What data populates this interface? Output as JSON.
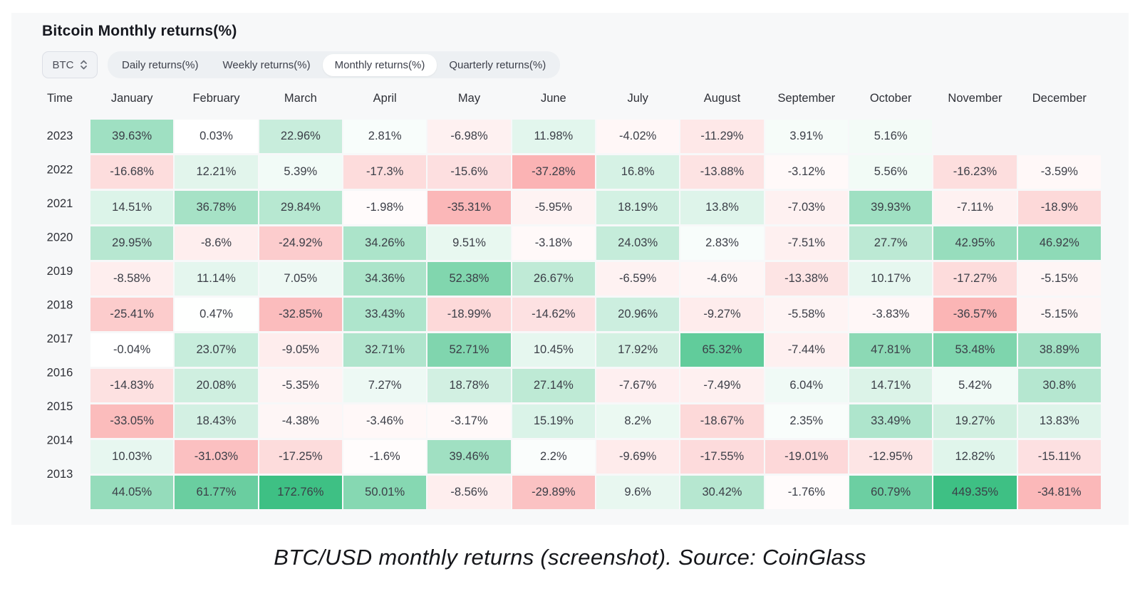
{
  "header": {
    "title": "Bitcoin Monthly returns(%)"
  },
  "controls": {
    "symbol_select": {
      "value": "BTC"
    },
    "tabs": [
      {
        "label": "Daily returns(%)",
        "active": false
      },
      {
        "label": "Weekly returns(%)",
        "active": false
      },
      {
        "label": "Monthly returns(%)",
        "active": true
      },
      {
        "label": "Quarterly returns(%)",
        "active": false
      }
    ]
  },
  "caption": "BTC/USD monthly returns (screenshot). Source: CoinGlass",
  "chart_data": {
    "type": "heatmap",
    "title": "Bitcoin Monthly returns(%)",
    "value_suffix": "%",
    "columns": [
      "Time",
      "January",
      "February",
      "March",
      "April",
      "May",
      "June",
      "July",
      "August",
      "September",
      "October",
      "November",
      "December"
    ],
    "rows": [
      {
        "year": "2023",
        "values": [
          39.63,
          0.03,
          22.96,
          2.81,
          -6.98,
          11.98,
          -4.02,
          -11.29,
          3.91,
          5.16,
          null,
          null
        ]
      },
      {
        "year": "2022",
        "values": [
          -16.68,
          12.21,
          5.39,
          -17.3,
          -15.6,
          -37.28,
          16.8,
          -13.88,
          -3.12,
          5.56,
          -16.23,
          -3.59
        ]
      },
      {
        "year": "2021",
        "values": [
          14.51,
          36.78,
          29.84,
          -1.98,
          -35.31,
          -5.95,
          18.19,
          13.8,
          -7.03,
          39.93,
          -7.11,
          -18.9
        ]
      },
      {
        "year": "2020",
        "values": [
          29.95,
          -8.6,
          -24.92,
          34.26,
          9.51,
          -3.18,
          24.03,
          2.83,
          -7.51,
          27.7,
          42.95,
          46.92
        ]
      },
      {
        "year": "2019",
        "values": [
          -8.58,
          11.14,
          7.05,
          34.36,
          52.38,
          26.67,
          -6.59,
          -4.6,
          -13.38,
          10.17,
          -17.27,
          -5.15
        ]
      },
      {
        "year": "2018",
        "values": [
          -25.41,
          0.47,
          -32.85,
          33.43,
          -18.99,
          -14.62,
          20.96,
          -9.27,
          -5.58,
          -3.83,
          -36.57,
          -5.15
        ]
      },
      {
        "year": "2017",
        "values": [
          -0.04,
          23.07,
          -9.05,
          32.71,
          52.71,
          10.45,
          17.92,
          65.32,
          -7.44,
          47.81,
          53.48,
          38.89
        ]
      },
      {
        "year": "2016",
        "values": [
          -14.83,
          20.08,
          -5.35,
          7.27,
          18.78,
          27.14,
          -7.67,
          -7.49,
          6.04,
          14.71,
          5.42,
          30.8
        ]
      },
      {
        "year": "2015",
        "values": [
          -33.05,
          18.43,
          -4.38,
          -3.46,
          -3.17,
          15.19,
          8.2,
          -18.67,
          2.35,
          33.49,
          19.27,
          13.83
        ]
      },
      {
        "year": "2014",
        "values": [
          10.03,
          -31.03,
          -17.25,
          -1.6,
          39.46,
          2.2,
          -9.69,
          -17.55,
          -19.01,
          -12.95,
          12.82,
          -15.11
        ]
      },
      {
        "year": "2013",
        "values": [
          44.05,
          61.77,
          172.76,
          50.01,
          -8.56,
          -29.89,
          9.6,
          30.42,
          -1.76,
          60.79,
          449.35,
          -34.81
        ]
      }
    ],
    "colors": {
      "positive": "#3ec084",
      "negative": "#f66768"
    },
    "layout": {
      "legend": "none",
      "grid": "off"
    }
  }
}
